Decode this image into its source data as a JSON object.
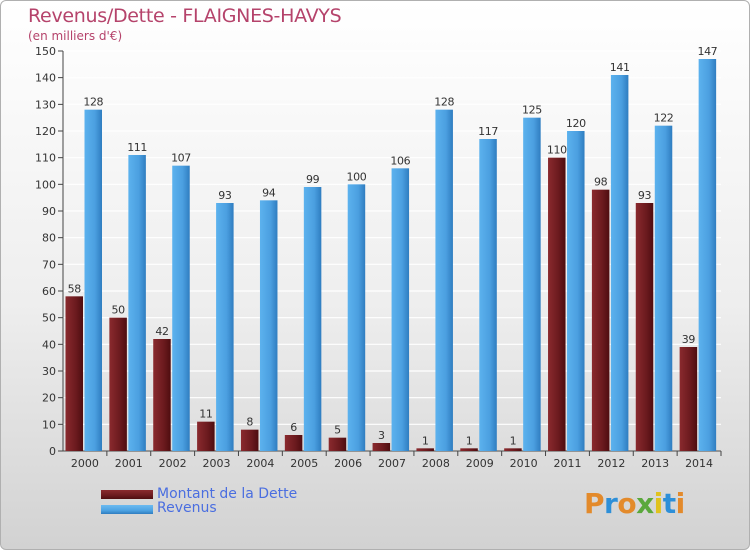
{
  "header": {
    "title": "Revenus/Dette - FLAIGNES-HAVYS",
    "subtitle": "(en milliers d'€)"
  },
  "legend": {
    "items": [
      {
        "label": "Montant de la Dette",
        "color": "#6b1a1e"
      },
      {
        "label": "Revenus",
        "color": "#4da3e3"
      }
    ]
  },
  "logo": {
    "text": "Proxiti",
    "colors": [
      "#e38a2b",
      "#2d8fd8",
      "#e38a2b",
      "#5aa83c",
      "#e0c21e",
      "#2d8fd8",
      "#e38a2b"
    ]
  },
  "chart_data": {
    "type": "bar",
    "title": "Revenus/Dette - FLAIGNES-HAVYS",
    "subtitle": "(en milliers d'€)",
    "categories": [
      "2000",
      "2001",
      "2002",
      "2003",
      "2004",
      "2005",
      "2006",
      "2007",
      "2008",
      "2009",
      "2010",
      "2011",
      "2012",
      "2013",
      "2014"
    ],
    "series": [
      {
        "name": "Montant de la Dette",
        "color": "#6b1a1e",
        "values": [
          58,
          50,
          42,
          11,
          8,
          6,
          5,
          3,
          1,
          1,
          1,
          110,
          98,
          93,
          39
        ]
      },
      {
        "name": "Revenus",
        "color": "#4da3e3",
        "values": [
          128,
          111,
          107,
          93,
          94,
          99,
          100,
          106,
          128,
          117,
          125,
          120,
          141,
          122,
          147
        ]
      }
    ],
    "ylim": [
      0,
      150
    ],
    "yticks": [
      0,
      10,
      20,
      30,
      40,
      50,
      60,
      70,
      80,
      90,
      100,
      110,
      120,
      130,
      140,
      150
    ],
    "grid": true
  }
}
